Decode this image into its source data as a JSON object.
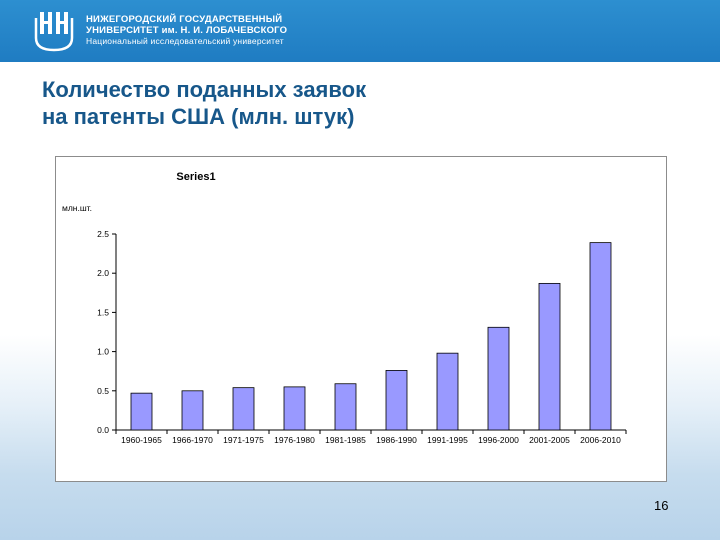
{
  "header": {
    "uni_line1": "НИЖЕГОРОДСКИЙ ГОСУДАРСТВЕННЫЙ",
    "uni_line2": "УНИВЕРСИТЕТ им. Н. И. ЛОБАЧЕВСКОГО",
    "uni_line3": "Национальный исследовательский университет"
  },
  "slide": {
    "title_line1": "Количество поданных заявок",
    "title_line2": "на патенты США (млн. штук)",
    "number": "16"
  },
  "chart_data": {
    "type": "bar",
    "legend_title": "Series1",
    "ylabel": "млн.шт.",
    "ylim": [
      0,
      2.5
    ],
    "yticks": [
      "0.0",
      "0.5",
      "1.0",
      "1.5",
      "2.0",
      "2.5"
    ],
    "grid": false,
    "bar_color": "#9999ff",
    "categories": [
      "1960-1965",
      "1966-1970",
      "1971-1975",
      "1976-1980",
      "1981-1985",
      "1986-1990",
      "1991-1995",
      "1996-2000",
      "2001-2005",
      "2006-2010"
    ],
    "values": [
      0.47,
      0.5,
      0.54,
      0.55,
      0.59,
      0.76,
      0.98,
      1.31,
      1.87,
      2.39
    ]
  }
}
